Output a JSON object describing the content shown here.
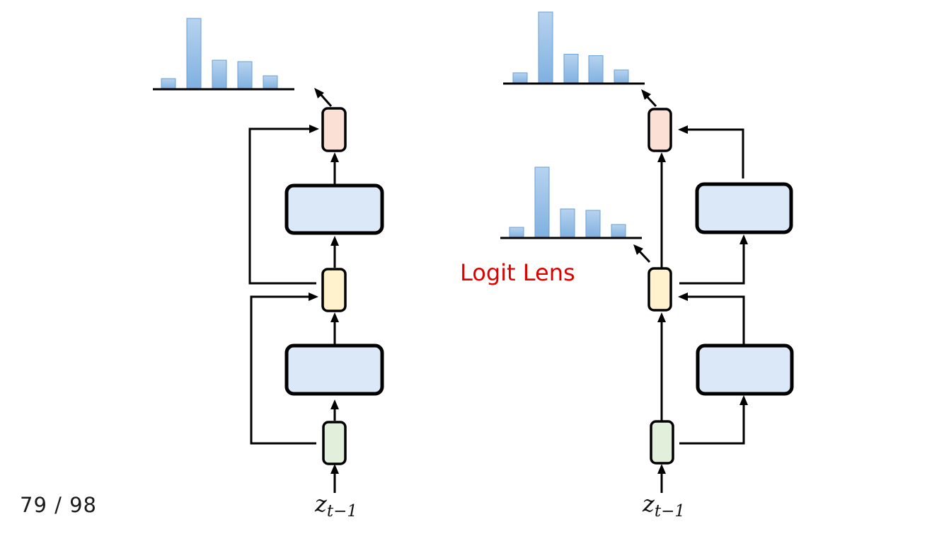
{
  "slide": {
    "page_number": "79 / 98",
    "annotation": "Logit Lens"
  },
  "diagrams": {
    "left": {
      "input_label": {
        "base": "z",
        "subscript": "t−1"
      },
      "histograms": [
        {
          "name": "final-output-distribution",
          "values": [
            0.15,
            1.0,
            0.41,
            0.39,
            0.19
          ]
        }
      ]
    },
    "right": {
      "input_label": {
        "base": "z",
        "subscript": "t−1"
      },
      "histograms": [
        {
          "name": "final-output-distribution",
          "values": [
            0.15,
            1.0,
            0.41,
            0.39,
            0.19
          ]
        },
        {
          "name": "intermediate-logit-lens-distribution",
          "values": [
            0.15,
            1.0,
            0.41,
            0.39,
            0.19
          ]
        }
      ]
    }
  },
  "colors": {
    "embedding_node": "#e2efda",
    "residual_node": "#fff2cc",
    "output_node": "#fbe0d5",
    "layer_block": "#dae8f8",
    "bar_fill": "#9dc3e6",
    "annotation": "#e00000"
  },
  "icons": {
    "arrowhead": "arrowhead-icon"
  }
}
